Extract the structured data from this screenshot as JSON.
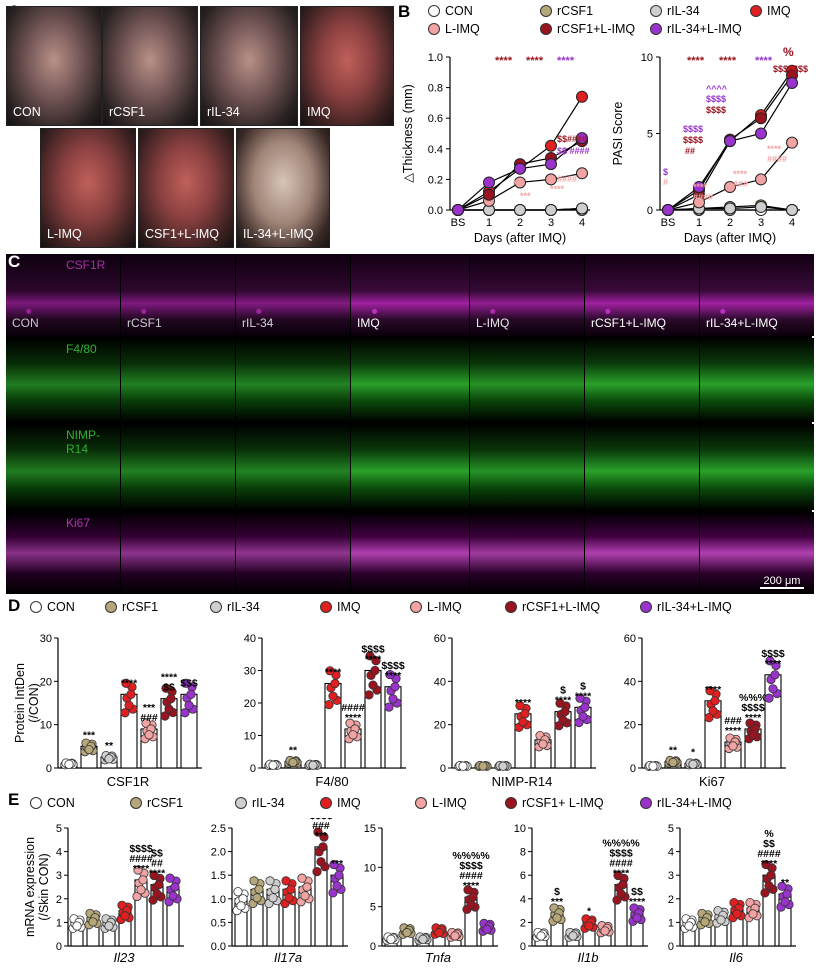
{
  "panels": {
    "a": "A",
    "b": "B",
    "c": "C",
    "d": "D",
    "e": "E"
  },
  "colors": {
    "con": "#ffffff",
    "rcsf1": "#b5a77a",
    "ril34": "#cfcfcf",
    "imq": "#e02020",
    "limq": "#f2a4a4",
    "rcsf1_limq": "#9a1420",
    "ril34_limq": "#9933cc"
  },
  "groups": [
    "CON",
    "rCSF1",
    "rIL-34",
    "IMQ",
    "L-IMQ",
    "rCSF1+L-IMQ",
    "rIL-34+L-IMQ"
  ],
  "groups_e": [
    "CON",
    "rCSF1",
    "rIL-34",
    "IMQ",
    "L-IMQ",
    "rCSF1+ L-IMQ",
    "rIL-34+L-IMQ"
  ],
  "panel_a": {
    "row1": [
      "CON",
      "rCSF1",
      "rIL-34",
      "IMQ"
    ],
    "row2": [
      "L-IMQ",
      "CSF1+L-IMQ",
      "IL-34+L-IMQ"
    ]
  },
  "panel_c": {
    "rows": [
      "CSF1R",
      "F4/80",
      "NIMP-R14",
      "Ki67"
    ],
    "columns": [
      "CON",
      "rCSF1",
      "rIL-34",
      "IMQ",
      "L-IMQ",
      "rCSF1+L-IMQ",
      "rIL-34+L-IMQ"
    ],
    "scale": "200 μm"
  },
  "chart_data": [
    {
      "id": "b_thickness",
      "type": "line",
      "xlabel": "Days (after IMQ)",
      "ylabel": "△Thickness (mm)",
      "categories": [
        "BS",
        "1",
        "2",
        "3",
        "4"
      ],
      "ylim": [
        0,
        1.0
      ],
      "yticks": [
        "0.0",
        "0.2",
        "0.4",
        "0.6",
        "0.8",
        "1.0"
      ],
      "series": [
        {
          "name": "CON",
          "values": [
            0,
            0,
            0,
            0,
            0
          ]
        },
        {
          "name": "rCSF1",
          "values": [
            0,
            0,
            0,
            0,
            0.01
          ]
        },
        {
          "name": "rIL-34",
          "values": [
            0,
            0,
            0,
            0,
            0.01
          ]
        },
        {
          "name": "IMQ",
          "values": [
            0,
            0.12,
            0.27,
            0.42,
            0.74
          ]
        },
        {
          "name": "L-IMQ",
          "values": [
            0,
            0.06,
            0.18,
            0.2,
            0.24
          ]
        },
        {
          "name": "rCSF1+L-IMQ",
          "values": [
            0,
            0.1,
            0.3,
            0.34,
            0.45
          ]
        },
        {
          "name": "rIL-34+L-IMQ",
          "values": [
            0,
            0.18,
            0.27,
            0.3,
            0.47
          ]
        }
      ]
    },
    {
      "id": "b_pasi",
      "type": "line",
      "xlabel": "Days (after IMQ)",
      "ylabel": "PASI Score",
      "categories": [
        "BS",
        "1",
        "2",
        "3",
        "4"
      ],
      "ylim": [
        0,
        10
      ],
      "yticks": [
        "0",
        "5",
        "10"
      ],
      "series": [
        {
          "name": "CON",
          "values": [
            0,
            0,
            0,
            0,
            0
          ]
        },
        {
          "name": "rCSF1",
          "values": [
            0,
            0.1,
            0.2,
            0.3,
            0
          ]
        },
        {
          "name": "rIL-34",
          "values": [
            0,
            0.1,
            0.1,
            0.2,
            0
          ]
        },
        {
          "name": "IMQ",
          "values": [
            0,
            1.0,
            4.5,
            6.2,
            9.1
          ]
        },
        {
          "name": "L-IMQ",
          "values": [
            0,
            0.5,
            1.5,
            2.0,
            4.4
          ]
        },
        {
          "name": "rCSF1+L-IMQ",
          "values": [
            0,
            1.3,
            4.6,
            6.0,
            8.8
          ]
        },
        {
          "name": "rIL-34+L-IMQ",
          "values": [
            0,
            1.5,
            4.5,
            5.0,
            8.3
          ]
        }
      ]
    },
    {
      "id": "d_csf1r",
      "type": "bar",
      "xlabel": "CSF1R",
      "ylabel": "Protein IntDen (/CON)",
      "ylim": [
        0,
        30
      ],
      "yticks": [
        "0",
        "10",
        "20",
        "30"
      ],
      "categories": [
        "CON",
        "rCSF1",
        "rIL-34",
        "IMQ",
        "L-IMQ",
        "rCSF1+L-IMQ",
        "rIL-34+L-IMQ"
      ],
      "values": [
        1,
        5,
        2.5,
        17,
        9,
        16,
        17
      ],
      "annotations": [
        "",
        "***",
        "**",
        "****",
        "***\n###",
        "****\n$$",
        "$$$"
      ]
    },
    {
      "id": "d_f480",
      "type": "bar",
      "xlabel": "F4/80",
      "ylim": [
        0,
        40
      ],
      "yticks": [
        "0",
        "10",
        "20",
        "30",
        "40"
      ],
      "categories": [
        "CON",
        "rCSF1",
        "rIL-34",
        "IMQ",
        "L-IMQ",
        "rCSF1+L-IMQ",
        "rIL-34+L-IMQ"
      ],
      "values": [
        1,
        2,
        1,
        26,
        12,
        30,
        25
      ],
      "annotations": [
        "",
        "**",
        "",
        "****",
        "####\n****",
        "$$$$\n****",
        "$$$$\n****"
      ]
    },
    {
      "id": "d_nimp",
      "type": "bar",
      "xlabel": "NIMP-R14",
      "ylim": [
        0,
        60
      ],
      "yticks": [
        "0",
        "20",
        "40",
        "60"
      ],
      "categories": [
        "CON",
        "rCSF1",
        "rIL-34",
        "IMQ",
        "L-IMQ",
        "rCSF1+L-IMQ",
        "rIL-34+L-IMQ"
      ],
      "values": [
        1,
        1,
        1,
        25,
        13,
        26,
        28
      ],
      "annotations": [
        "",
        "",
        "",
        "****",
        "",
        "$\n****",
        "$\n****"
      ]
    },
    {
      "id": "d_ki67",
      "type": "bar",
      "xlabel": "Ki67",
      "ylim": [
        0,
        60
      ],
      "yticks": [
        "0",
        "20",
        "40",
        "60"
      ],
      "categories": [
        "CON",
        "rCSF1",
        "rIL-34",
        "IMQ",
        "L-IMQ",
        "rCSF1+L-IMQ",
        "rIL-34+L-IMQ"
      ],
      "values": [
        1,
        3,
        2,
        31,
        12,
        18,
        43
      ],
      "annotations": [
        "",
        "**",
        "*",
        "****",
        "###\n****",
        "%%%\n$$$$\n****",
        "$$$$\n****"
      ]
    },
    {
      "id": "e_il23",
      "type": "bar",
      "xlabel": "Il23",
      "ylabel": "mRNA expression (/Skin CON)",
      "ylim": [
        0,
        5
      ],
      "yticks": [
        "0",
        "1",
        "2",
        "3",
        "4",
        "5"
      ],
      "categories": [
        "CON",
        "rCSF1",
        "rIL-34",
        "IMQ",
        "L-IMQ",
        "rCSF1+ L-IMQ",
        "rIL-34+L-IMQ"
      ],
      "values": [
        1,
        1.2,
        1,
        1.5,
        2.8,
        2.6,
        2.5
      ],
      "annotations": [
        "",
        "",
        "",
        "",
        "$$$$\n####\n****",
        "$$\n##\n****",
        ""
      ]
    },
    {
      "id": "e_il17a",
      "type": "bar",
      "xlabel": "Il17a",
      "ylim": [
        0,
        2.5
      ],
      "yticks": [
        "0.0",
        "0.5",
        "1.0",
        "1.5",
        "2.0",
        "2.5"
      ],
      "categories": [
        "CON",
        "rCSF1",
        "rIL-34",
        "IMQ",
        "L-IMQ",
        "rCSF1+ L-IMQ",
        "rIL-34+L-IMQ"
      ],
      "values": [
        1,
        1.2,
        1.2,
        1.2,
        1.25,
        2.1,
        1.5
      ],
      "annotations": [
        "",
        "",
        "",
        "",
        "",
        "%%%%\n$$$$\n###\n***",
        "***"
      ]
    },
    {
      "id": "e_tnfa",
      "type": "bar",
      "xlabel": "Tnfa",
      "ylim": [
        0,
        15
      ],
      "yticks": [
        "0",
        "5",
        "10",
        "15"
      ],
      "categories": [
        "CON",
        "rCSF1",
        "rIL-34",
        "IMQ",
        "L-IMQ",
        "rCSF1+ L-IMQ",
        "rIL-34+L-IMQ"
      ],
      "values": [
        1,
        2,
        1,
        2,
        1.5,
        6.2,
        2.5
      ],
      "annotations": [
        "",
        "",
        "",
        "",
        "",
        "%%%%\n$$$$\n####\n****",
        ""
      ]
    },
    {
      "id": "e_il1b",
      "type": "bar",
      "xlabel": "Il1b",
      "ylim": [
        0,
        10
      ],
      "yticks": [
        "0",
        "2",
        "4",
        "6",
        "8",
        "10"
      ],
      "categories": [
        "CON",
        "rCSF1",
        "rIL-34",
        "IMQ",
        "L-IMQ",
        "rCSF1+ L-IMQ",
        "rIL-34+L-IMQ"
      ],
      "values": [
        1,
        2.8,
        1,
        2,
        1.5,
        5.2,
        2.8
      ],
      "annotations": [
        "",
        "$\n***",
        "",
        "*",
        "",
        "%%%%\n$$$$\n####\n****",
        "$$\n****"
      ]
    },
    {
      "id": "e_il6",
      "type": "bar",
      "xlabel": "Il6",
      "ylim": [
        0,
        5
      ],
      "yticks": [
        "0",
        "1",
        "2",
        "3",
        "4",
        "5"
      ],
      "categories": [
        "CON",
        "rCSF1",
        "rIL-34",
        "IMQ",
        "L-IMQ",
        "rCSF1+ L-IMQ",
        "rIL-34+L-IMQ"
      ],
      "values": [
        1,
        1.2,
        1.3,
        1.6,
        1.6,
        3,
        2.2
      ],
      "annotations": [
        "",
        "",
        "",
        "",
        "",
        "%\n$$\n####\n****",
        "**"
      ]
    }
  ],
  "b_sig": {
    "top_left": [
      "****",
      "****",
      "****"
    ],
    "top_right": [
      "****",
      "****",
      "****"
    ],
    "pct": "%"
  }
}
